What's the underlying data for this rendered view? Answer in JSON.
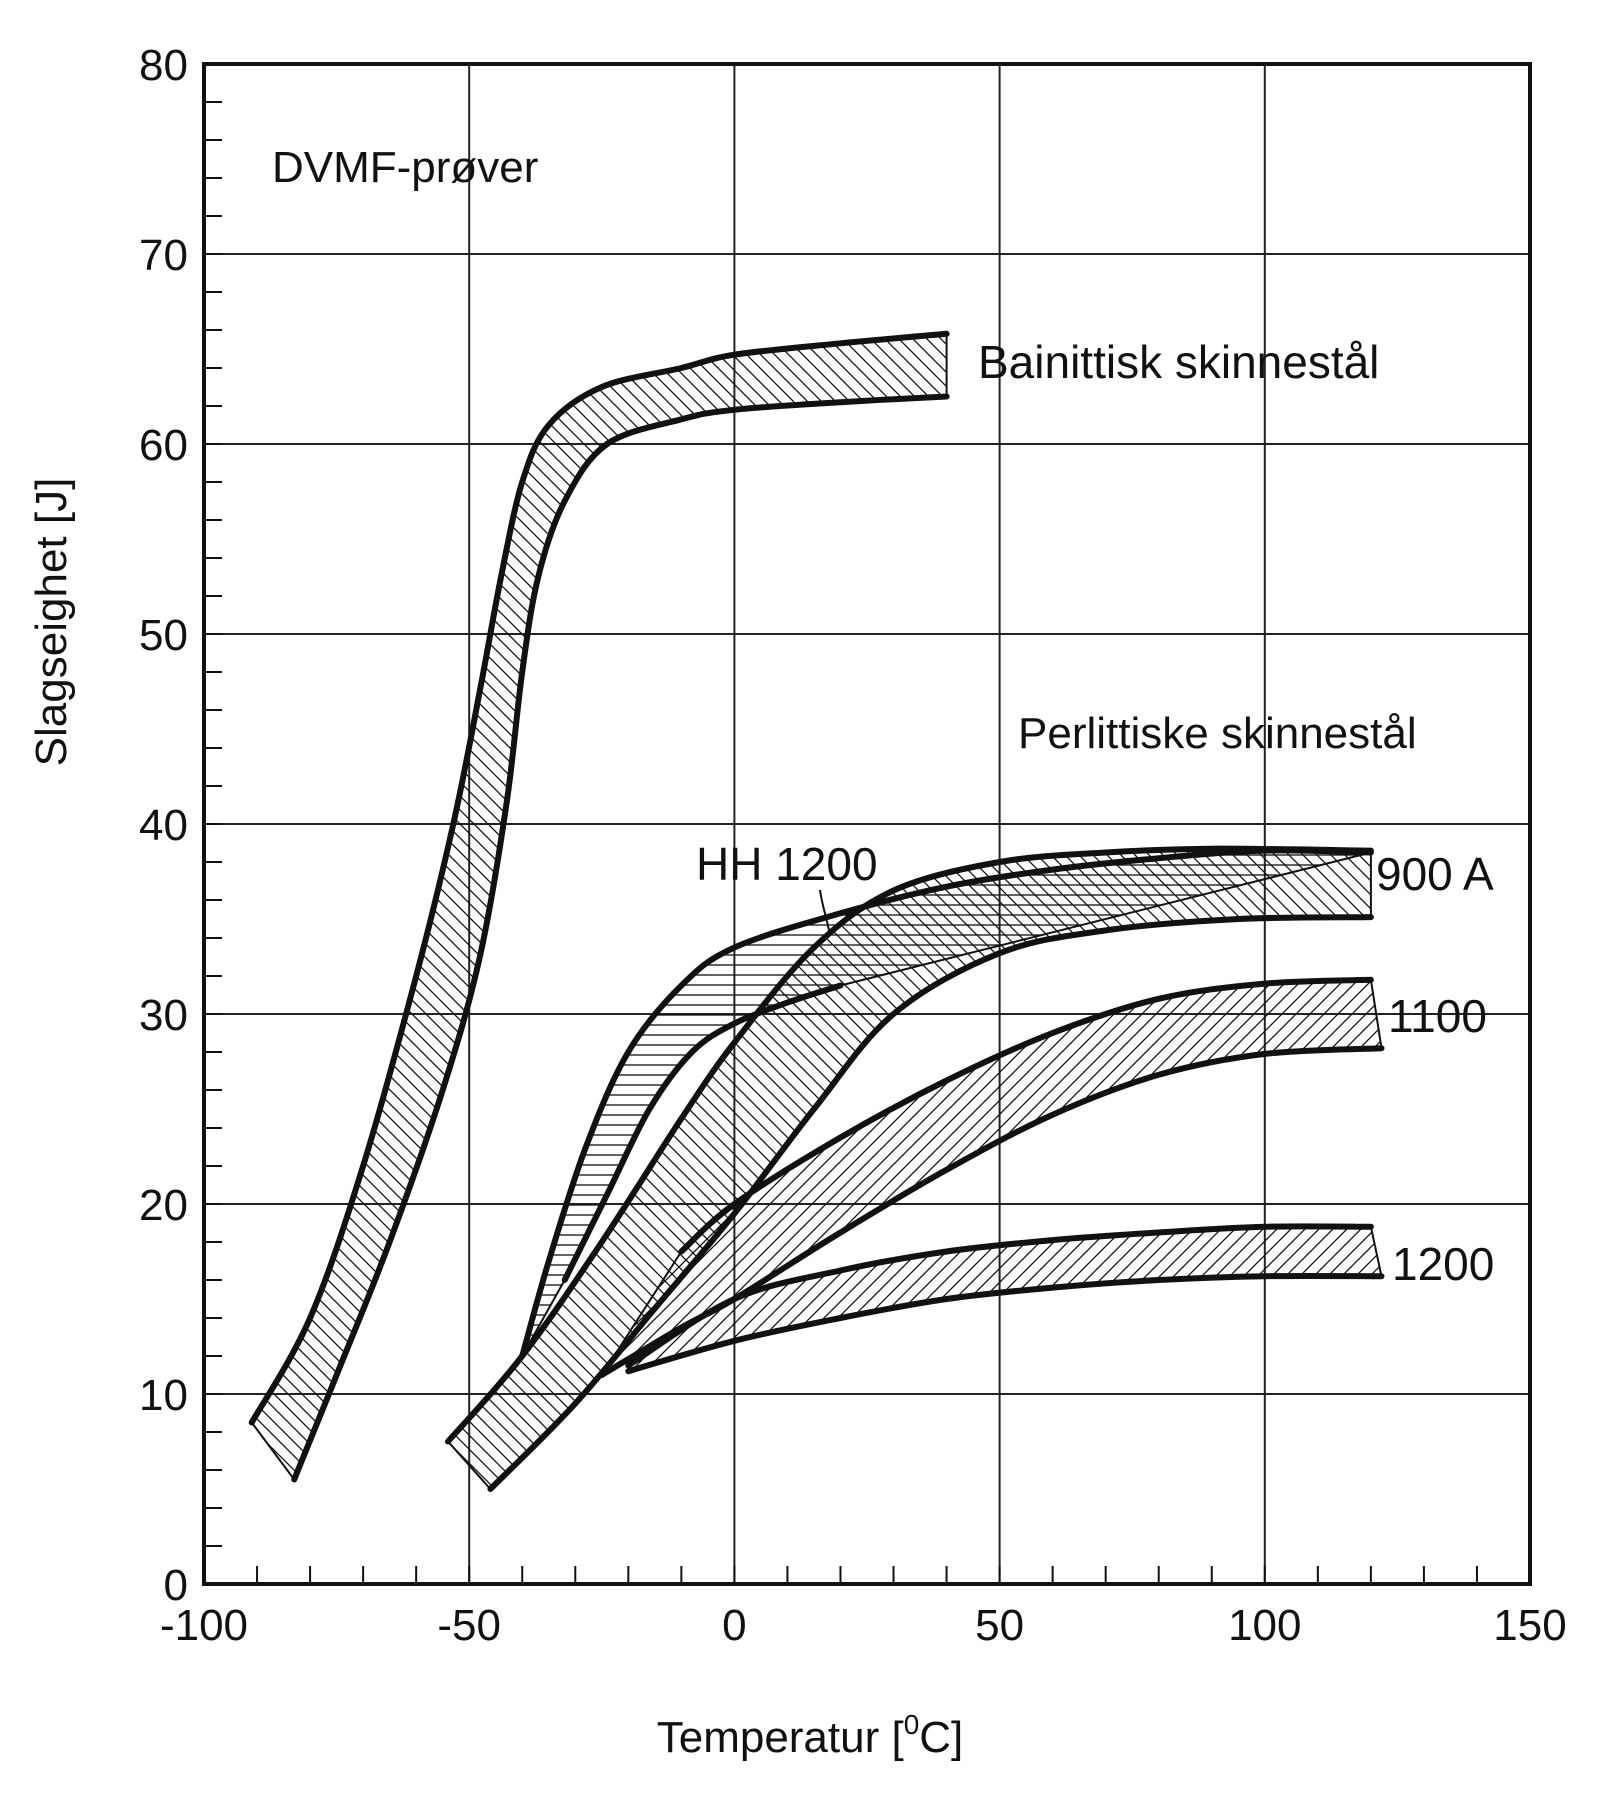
{
  "chart_data": {
    "type": "area",
    "title": "",
    "annotation": "DVMF-prøver",
    "group_annotation": "Perlittiske skinnestål",
    "xlabel_prefix": "Temperatur [",
    "xlabel_sup": "0",
    "xlabel_suffix": "C]",
    "ylabel": "Slagseighet [J]",
    "xlim": [
      -100,
      150
    ],
    "ylim": [
      0,
      80
    ],
    "xticks": [
      -100,
      -50,
      0,
      50,
      100,
      150
    ],
    "yticks": [
      0,
      10,
      20,
      30,
      40,
      50,
      60,
      70,
      80
    ],
    "x_tick_labels": [
      "-100",
      "-50",
      "0",
      "50",
      "100",
      "150"
    ],
    "y_tick_labels": [
      "0",
      "10",
      "20",
      "30",
      "40",
      "50",
      "60",
      "70",
      "80"
    ],
    "grid": true,
    "series": [
      {
        "name": "Bainittisk skinnestål",
        "label": "Bainittisk skinnestål",
        "hatch": "diag-down",
        "upper": [
          [
            -91,
            8.5
          ],
          [
            -80,
            14
          ],
          [
            -70,
            22
          ],
          [
            -60,
            32
          ],
          [
            -53,
            40
          ],
          [
            -48,
            47
          ],
          [
            -44,
            53
          ],
          [
            -40,
            58
          ],
          [
            -35,
            61
          ],
          [
            -25,
            63
          ],
          [
            -10,
            64
          ],
          [
            0,
            64.7
          ],
          [
            20,
            65.3
          ],
          [
            40,
            65.8
          ]
        ],
        "lower": [
          [
            -83,
            5.5
          ],
          [
            -75,
            11
          ],
          [
            -65,
            18
          ],
          [
            -55,
            26
          ],
          [
            -48,
            33
          ],
          [
            -43,
            41
          ],
          [
            -40,
            48
          ],
          [
            -37,
            53
          ],
          [
            -32,
            57
          ],
          [
            -24,
            60
          ],
          [
            -10,
            61.3
          ],
          [
            0,
            61.8
          ],
          [
            20,
            62.2
          ],
          [
            40,
            62.5
          ]
        ]
      },
      {
        "name": "HH 1200",
        "label": "HH 1200",
        "hatch": "horizontal",
        "upper": [
          [
            -40,
            12
          ],
          [
            -35,
            17
          ],
          [
            -28,
            23
          ],
          [
            -20,
            28
          ],
          [
            -10,
            31.5
          ],
          [
            0,
            33.5
          ],
          [
            20,
            35.3
          ],
          [
            40,
            36.7
          ],
          [
            60,
            37.6
          ],
          [
            80,
            38.2
          ],
          [
            100,
            38.6
          ],
          [
            120,
            38.5
          ]
        ],
        "lower": [
          [
            -32,
            16
          ],
          [
            -24,
            20.5
          ],
          [
            -16,
            25
          ],
          [
            -8,
            28
          ],
          [
            0,
            29.5
          ],
          [
            10,
            30.6
          ],
          [
            20,
            31.5
          ]
        ]
      },
      {
        "name": "900 A",
        "label": "900 A",
        "hatch": "diag-down",
        "upper": [
          [
            -54,
            7.5
          ],
          [
            -40,
            12
          ],
          [
            -25,
            18
          ],
          [
            -10,
            24.5
          ],
          [
            0,
            28.5
          ],
          [
            15,
            33.5
          ],
          [
            30,
            36.5
          ],
          [
            50,
            38
          ],
          [
            70,
            38.5
          ],
          [
            90,
            38.7
          ],
          [
            120,
            38.6
          ]
        ],
        "lower": [
          [
            -46,
            5
          ],
          [
            -30,
            9.5
          ],
          [
            -15,
            14.5
          ],
          [
            0,
            19.5
          ],
          [
            15,
            25
          ],
          [
            30,
            30
          ],
          [
            50,
            33.2
          ],
          [
            70,
            34.4
          ],
          [
            95,
            35
          ],
          [
            120,
            35.1
          ]
        ]
      },
      {
        "name": "1100",
        "label": "1100",
        "hatch": "diag-up",
        "upper": [
          [
            -10,
            17.5
          ],
          [
            0,
            20
          ],
          [
            20,
            23.5
          ],
          [
            40,
            26.5
          ],
          [
            60,
            29
          ],
          [
            80,
            30.8
          ],
          [
            100,
            31.6
          ],
          [
            120,
            31.8
          ]
        ],
        "lower": [
          [
            -25,
            11
          ],
          [
            -10,
            13.5
          ],
          [
            0,
            15
          ],
          [
            20,
            18.5
          ],
          [
            40,
            21.8
          ],
          [
            60,
            24.7
          ],
          [
            80,
            26.8
          ],
          [
            100,
            27.9
          ],
          [
            122,
            28.2
          ]
        ]
      },
      {
        "name": "1200",
        "label": "1200",
        "hatch": "diag-up",
        "upper": [
          [
            -20,
            11.5
          ],
          [
            0,
            15
          ],
          [
            20,
            16.5
          ],
          [
            40,
            17.5
          ],
          [
            60,
            18.1
          ],
          [
            80,
            18.5
          ],
          [
            100,
            18.8
          ],
          [
            120,
            18.8
          ]
        ],
        "lower": [
          [
            -20,
            11.2
          ],
          [
            0,
            12.8
          ],
          [
            20,
            14
          ],
          [
            40,
            15
          ],
          [
            60,
            15.6
          ],
          [
            80,
            16
          ],
          [
            100,
            16.2
          ],
          [
            122,
            16.2
          ]
        ]
      }
    ]
  }
}
